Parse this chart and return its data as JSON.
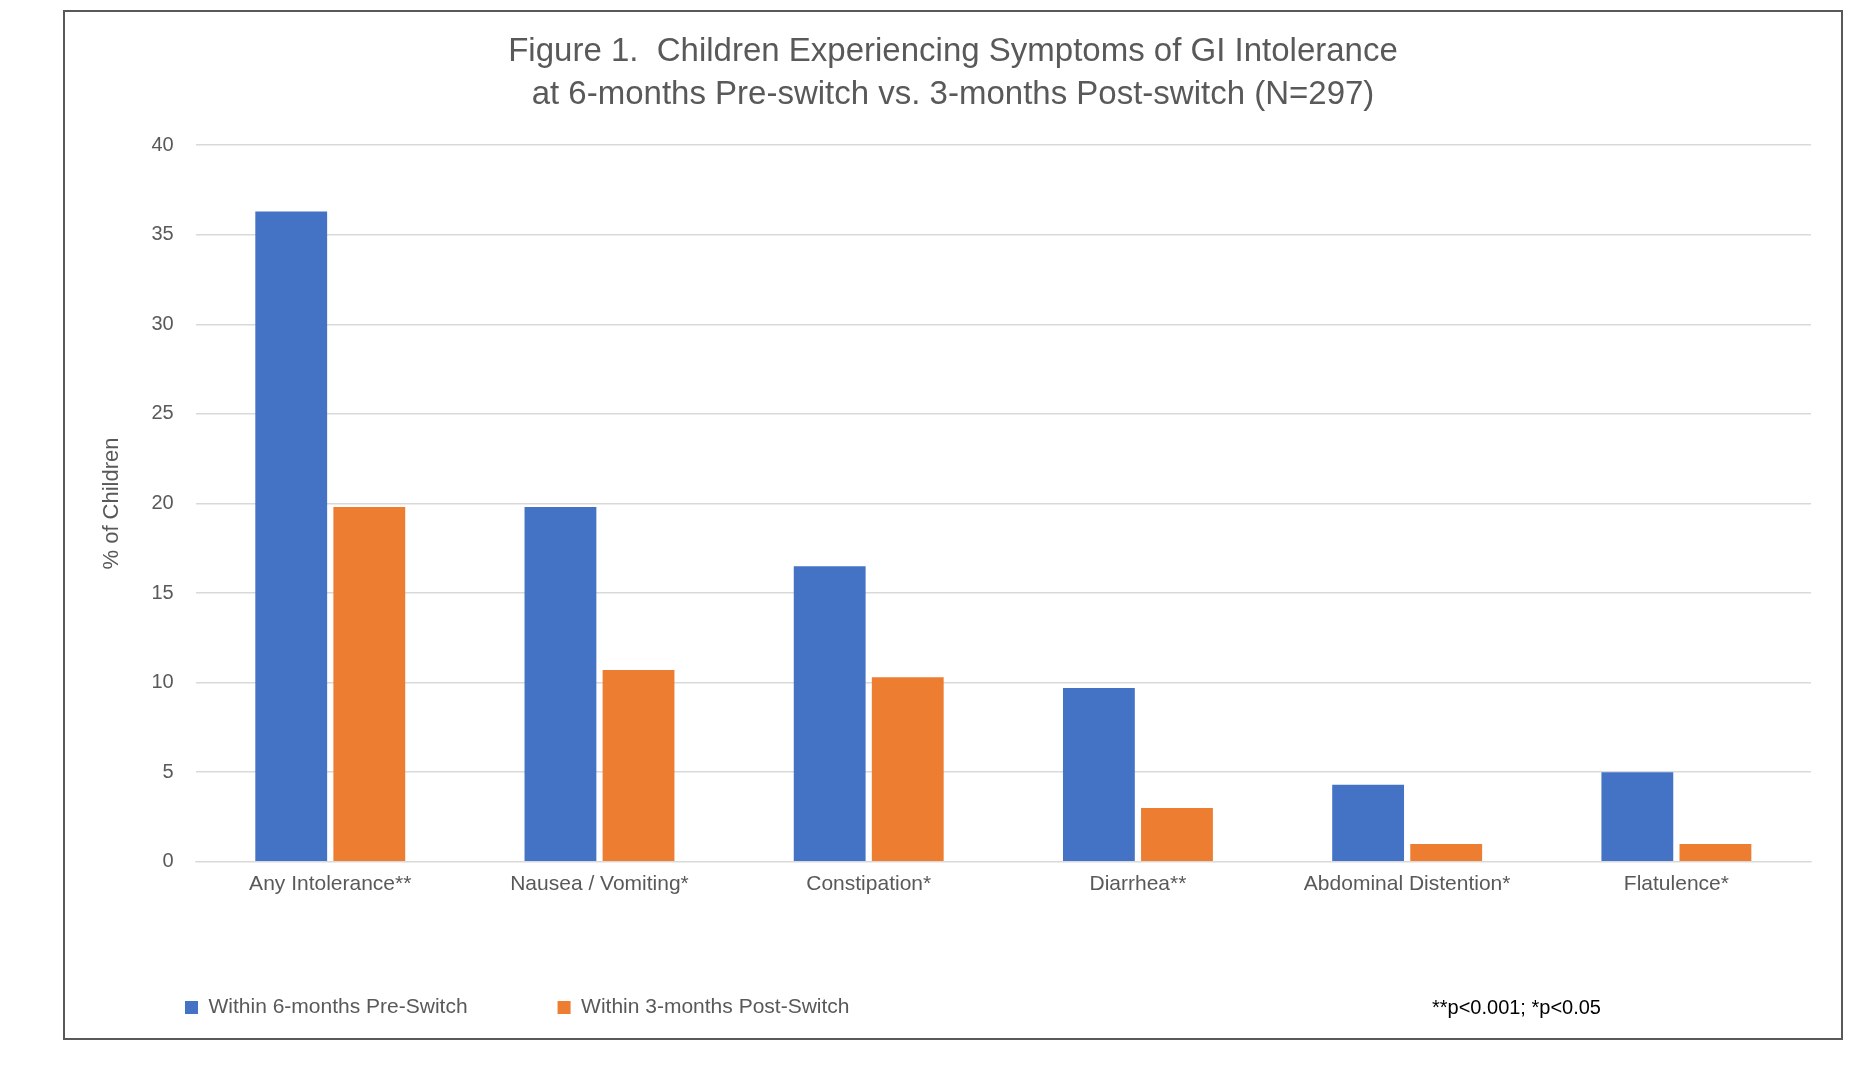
{
  "chart_data": {
    "type": "bar",
    "title": "Figure 1.  Children Experiencing Symptoms of GI Intolerance",
    "subtitle": "at 6-months Pre-switch vs. 3-months Post-switch (N=297)",
    "ylabel": "% of Children",
    "categories": [
      "Any Intolerance**",
      "Nausea / Vomiting*",
      "Constipation*",
      "Diarrhea**",
      "Abdominal Distention*",
      "Flatulence*"
    ],
    "series": [
      {
        "name": "Within 6-months Pre-Switch",
        "color": "#4472c4",
        "values": [
          36.3,
          19.8,
          16.5,
          9.7,
          4.3,
          5.0
        ]
      },
      {
        "name": "Within 3-months Post-Switch",
        "color": "#ed7d31",
        "values": [
          19.8,
          10.7,
          10.3,
          3.0,
          1.0,
          1.0
        ]
      }
    ],
    "ylim": [
      0,
      40
    ],
    "yticks": [
      0,
      5,
      10,
      15,
      20,
      25,
      30,
      35,
      40
    ],
    "grid": "y",
    "legend": "bottom left",
    "annotations": [
      "**p<0.001; *p<0.05"
    ]
  }
}
